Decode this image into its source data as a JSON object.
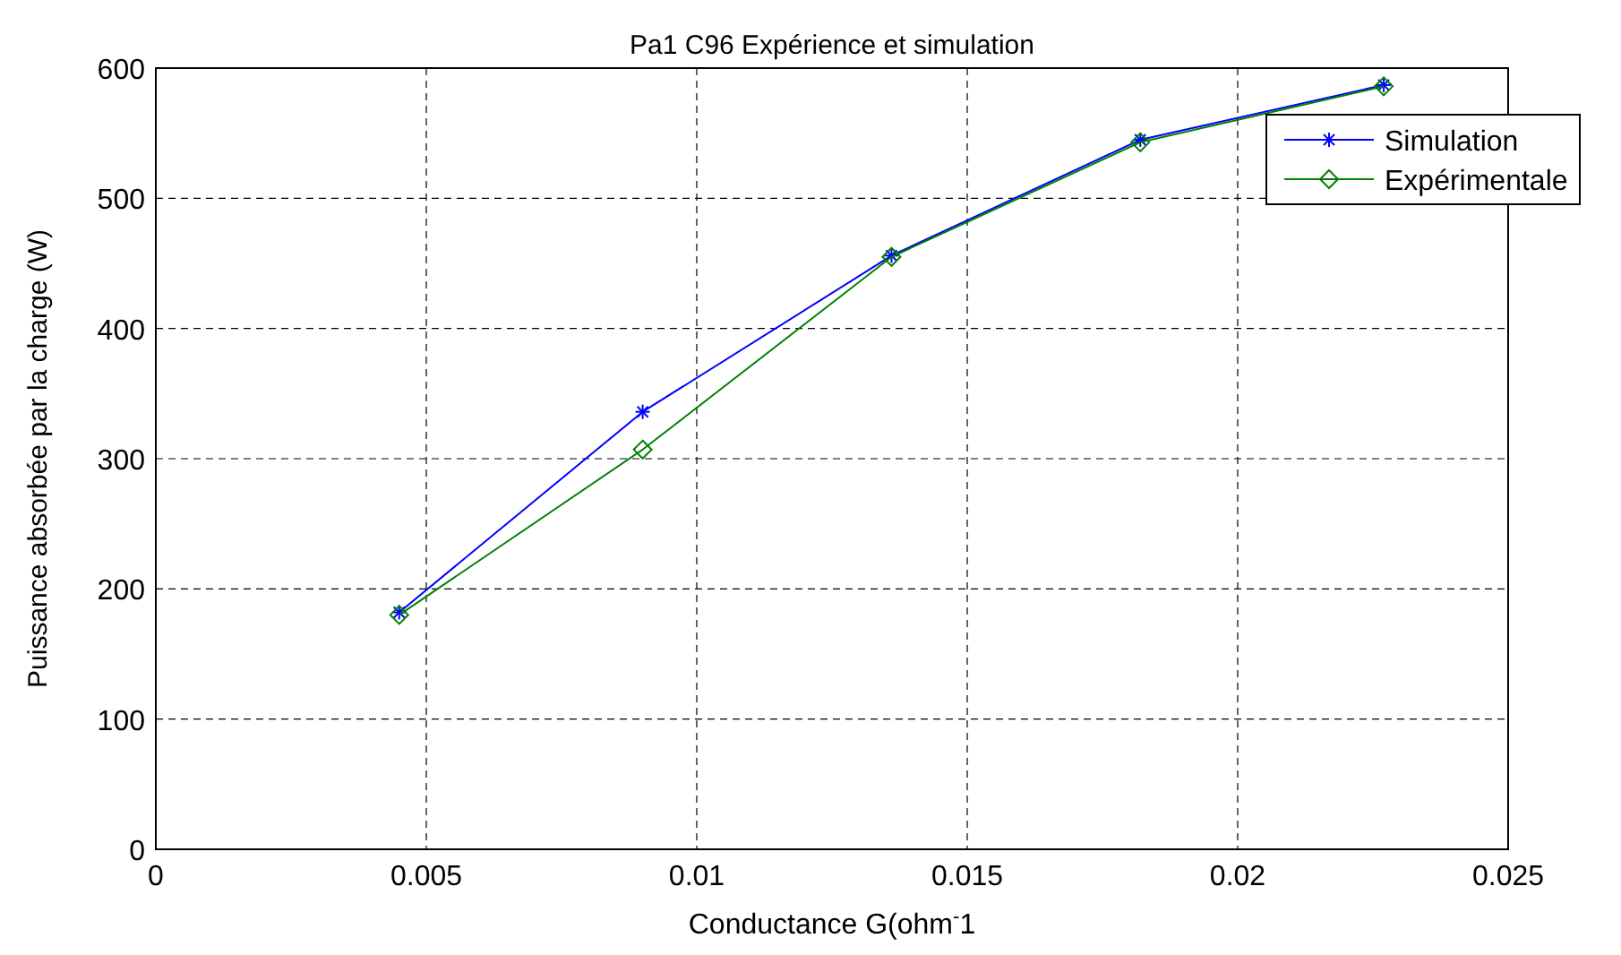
{
  "chart_data": {
    "type": "line",
    "title": "Pa1 C96 Expérience et simulation",
    "xlabel": "Conductance G(ohm$^{-}$1",
    "ylabel": "Puissance absorbée par la charge (W)",
    "x": [
      0.0045,
      0.009,
      0.0136,
      0.0182,
      0.0227
    ],
    "series": [
      {
        "name": "Simulation",
        "color": "#0000ff",
        "marker": "cross",
        "values": [
          182,
          336,
          456,
          545,
          587
        ]
      },
      {
        "name": "Expérimentale",
        "color": "#008000",
        "marker": "diamond",
        "values": [
          180,
          307,
          455,
          543,
          586
        ]
      }
    ],
    "xlim": [
      0,
      0.025
    ],
    "xticks": [
      0,
      0.005,
      0.01,
      0.015,
      0.02,
      0.025
    ],
    "ylim": [
      0,
      600
    ],
    "yticks": [
      0,
      100,
      200,
      300,
      400,
      500,
      600
    ],
    "grid": true,
    "legend": "top right",
    "line_style": "solid"
  }
}
